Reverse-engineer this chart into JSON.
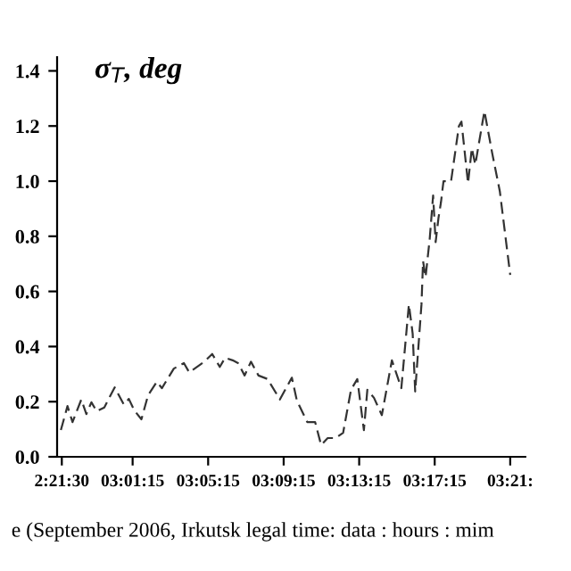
{
  "chart_data": {
    "type": "line",
    "ylabel": "σ$_{T}$, deg",
    "xlabel": "e (September 2006, Irkutsk legal time: data : hours : mim",
    "x": [
      "2006-09-02T21:27",
      "2006-09-02T21:48",
      "2006-09-02T22:04",
      "2006-09-02T22:32",
      "2006-09-02T22:48",
      "2006-09-02T23:04",
      "2006-09-02T23:21",
      "2006-09-02T23:45",
      "2006-09-03T00:18",
      "2006-09-03T00:47",
      "2006-09-03T01:03",
      "2006-09-03T01:20",
      "2006-09-03T01:43",
      "2006-09-03T02:04",
      "2006-09-03T02:32",
      "2006-09-03T02:48",
      "2006-09-03T03:26",
      "2006-09-03T03:58",
      "2006-09-03T04:15",
      "2006-09-03T05:03",
      "2006-09-03T05:28",
      "2006-09-03T05:52",
      "2006-09-03T06:09",
      "2006-09-03T06:33",
      "2006-09-03T06:50",
      "2006-09-03T07:11",
      "2006-09-03T07:31",
      "2006-09-03T07:55",
      "2006-09-03T08:24",
      "2006-09-03T09:03",
      "2006-09-03T09:41",
      "2006-09-03T09:57",
      "2006-09-03T10:30",
      "2006-09-03T10:55",
      "2006-09-03T11:14",
      "2006-09-03T11:35",
      "2006-09-03T12:00",
      "2006-09-03T12:24",
      "2006-09-03T12:49",
      "2006-09-03T13:09",
      "2006-09-03T13:30",
      "2006-09-03T13:41",
      "2006-09-03T14:02",
      "2006-09-03T14:27",
      "2006-09-03T14:59",
      "2006-09-03T15:29",
      "2006-09-03T15:53",
      "2006-09-03T16:05",
      "2006-09-03T16:13",
      "2006-09-03T16:33",
      "2006-09-03T16:38",
      "2006-09-03T16:46",
      "2006-09-03T16:59",
      "2006-09-03T17:10",
      "2006-09-03T17:18",
      "2006-09-03T17:27",
      "2006-09-03T17:35",
      "2006-09-03T17:43",
      "2006-09-03T18:07",
      "2006-09-03T18:32",
      "2006-09-03T18:40",
      "2006-09-03T19:01",
      "2006-09-03T19:13",
      "2006-09-03T19:24",
      "2006-09-03T19:53",
      "2006-09-03T20:18",
      "2006-09-03T20:42",
      "2006-09-03T21:15"
    ],
    "series": [
      {
        "color": "#333333",
        "values": [
          0.097,
          0.184,
          0.126,
          0.208,
          0.155,
          0.198,
          0.165,
          0.179,
          0.252,
          0.19,
          0.21,
          0.169,
          0.136,
          0.223,
          0.272,
          0.249,
          0.32,
          0.34,
          0.306,
          0.345,
          0.373,
          0.326,
          0.359,
          0.35,
          0.34,
          0.295,
          0.345,
          0.295,
          0.282,
          0.208,
          0.287,
          0.204,
          0.126,
          0.126,
          0.043,
          0.068,
          0.068,
          0.087,
          0.243,
          0.282,
          0.097,
          0.243,
          0.214,
          0.151,
          0.35,
          0.249,
          0.553,
          0.447,
          0.237,
          0.553,
          0.71,
          0.652,
          0.788,
          0.948,
          0.779,
          0.866,
          0.924,
          1.0,
          1.0,
          1.2,
          1.216,
          0.992,
          1.12,
          1.06,
          1.254,
          1.1,
          0.963,
          0.66
        ]
      }
    ],
    "xlim": [
      "2006-09-02T21:15",
      "2006-09-03T22:03"
    ],
    "ylim": [
      0,
      1.45
    ],
    "xticks": [
      {
        "value": "2006-09-02T21:30",
        "label": "2:21:30"
      },
      {
        "value": "2006-09-03T01:15",
        "label": "03:01:15"
      },
      {
        "value": "2006-09-03T05:15",
        "label": "03:05:15"
      },
      {
        "value": "2006-09-03T09:15",
        "label": "03:09:15"
      },
      {
        "value": "2006-09-03T13:15",
        "label": "03:13:15"
      },
      {
        "value": "2006-09-03T17:15",
        "label": "03:17:15"
      },
      {
        "value": "2006-09-03T21:15",
        "label": "03:21:"
      }
    ],
    "yticks": [
      {
        "value": 0,
        "label": "0.0"
      },
      0.2,
      0.4,
      0.6,
      0.8,
      {
        "value": 1.0,
        "label": "1.0"
      },
      1.2,
      1.4
    ],
    "grid": false,
    "legend": false,
    "marker": "none",
    "line_style": "dashed"
  }
}
